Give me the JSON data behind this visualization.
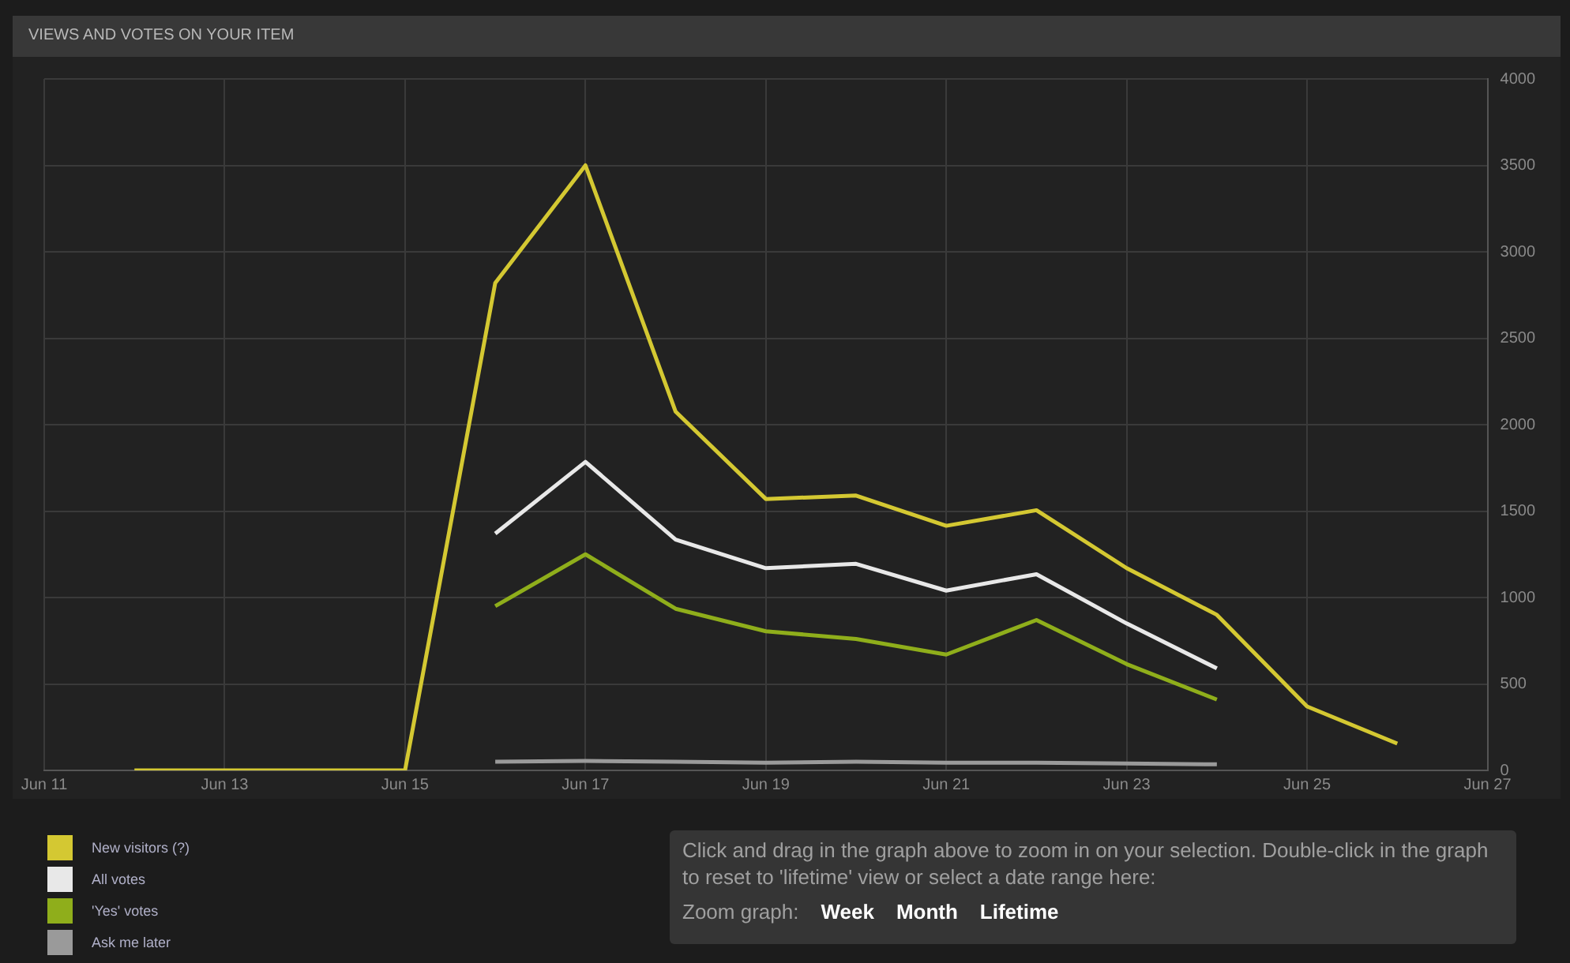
{
  "chart_data": {
    "type": "line",
    "title": "VIEWS AND VOTES ON YOUR ITEM",
    "xlim": [
      "--06-11",
      "--06-27"
    ],
    "xticks": [
      {
        "value": "--06-11",
        "label": "Jun 11"
      },
      {
        "value": "--06-13",
        "label": "Jun 13"
      },
      {
        "value": "--06-15",
        "label": "Jun 15"
      },
      {
        "value": "--06-17",
        "label": "Jun 17"
      },
      {
        "value": "--06-19",
        "label": "Jun 19"
      },
      {
        "value": "--06-21",
        "label": "Jun 21"
      },
      {
        "value": "--06-23",
        "label": "Jun 23"
      },
      {
        "value": "--06-25",
        "label": "Jun 25"
      },
      {
        "value": "--06-27",
        "label": "Jun 27"
      }
    ],
    "ylim": [
      0,
      4000
    ],
    "yticks": [
      0,
      500,
      1000,
      1500,
      2000,
      2500,
      3000,
      3500,
      4000
    ],
    "grid": true,
    "legend": "bottom left",
    "marker": "none",
    "line_style": "solid",
    "series": [
      {
        "name": "New visitors (?)",
        "color": "#d4c832",
        "x": [
          "--06-12",
          "--06-13",
          "--06-14",
          "--06-15",
          "--06-16",
          "--06-17",
          "--06-18",
          "--06-19",
          "--06-20",
          "--06-21",
          "--06-22",
          "--06-23",
          "--06-24",
          "--06-25",
          "--06-26"
        ],
        "values": [
          0,
          0,
          0,
          0,
          2820,
          3500,
          2075,
          1570,
          1590,
          1415,
          1505,
          1170,
          900,
          370,
          155
        ]
      },
      {
        "name": "All votes",
        "color": "#e8e8e8",
        "x": [
          "--06-16",
          "--06-17",
          "--06-18",
          "--06-19",
          "--06-20",
          "--06-21",
          "--06-22",
          "--06-23",
          "--06-24"
        ],
        "values": [
          1370,
          1785,
          1335,
          1170,
          1195,
          1040,
          1135,
          850,
          590
        ]
      },
      {
        "name": "'Yes' votes",
        "color": "#8fae1b",
        "x": [
          "--06-16",
          "--06-17",
          "--06-18",
          "--06-19",
          "--06-20",
          "--06-21",
          "--06-22",
          "--06-23",
          "--06-24"
        ],
        "values": [
          950,
          1250,
          935,
          805,
          760,
          670,
          870,
          615,
          410
        ]
      },
      {
        "name": "Ask me later",
        "color": "#9a9a9a",
        "x": [
          "--06-16",
          "--06-17",
          "--06-18",
          "--06-19",
          "--06-20",
          "--06-21",
          "--06-22",
          "--06-23",
          "--06-24"
        ],
        "values": [
          50,
          55,
          50,
          45,
          50,
          45,
          45,
          40,
          35
        ]
      }
    ],
    "annotations": [
      "Click and drag in the graph above to zoom in on your selection. Double-click in the graph to reset to 'lifetime' view or select a date range here:",
      "Zoom graph:",
      "Week",
      "Month",
      "Lifetime"
    ]
  }
}
